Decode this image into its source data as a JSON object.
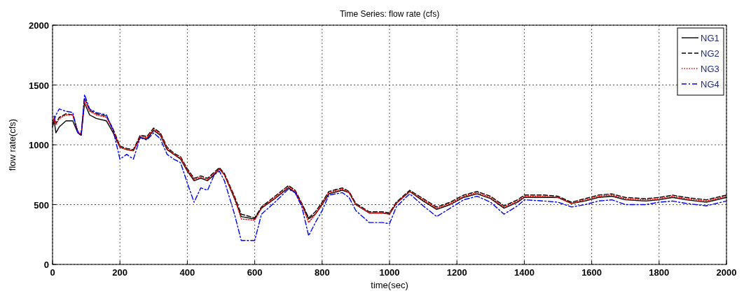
{
  "chart_data": {
    "type": "line",
    "title": "Time Series: flow rate (cfs)",
    "xlabel": "time(sec)",
    "ylabel": "flow rate(cfs)",
    "x": [
      0,
      5,
      10,
      20,
      40,
      60,
      75,
      85,
      95,
      110,
      130,
      160,
      180,
      200,
      220,
      240,
      260,
      280,
      300,
      320,
      340,
      360,
      380,
      400,
      420,
      440,
      460,
      480,
      495,
      510,
      540,
      560,
      600,
      620,
      660,
      700,
      720,
      740,
      760,
      780,
      800,
      820,
      860,
      880,
      900,
      940,
      980,
      1000,
      1020,
      1060,
      1100,
      1140,
      1180,
      1220,
      1260,
      1300,
      1340,
      1380,
      1400,
      1460,
      1500,
      1540,
      1580,
      1620,
      1660,
      1700,
      1760,
      1800,
      1840,
      1880,
      1940,
      2000
    ],
    "series": [
      {
        "name": "NG1",
        "color": "#000000",
        "line_style": "solid",
        "values": [
          1150,
          1200,
          1100,
          1150,
          1200,
          1200,
          1100,
          1080,
          1350,
          1250,
          1220,
          1200,
          1100,
          980,
          960,
          950,
          1060,
          1050,
          1120,
          1080,
          960,
          920,
          880,
          780,
          700,
          720,
          700,
          750,
          800,
          750,
          550,
          400,
          380,
          470,
          550,
          640,
          600,
          500,
          380,
          420,
          500,
          590,
          620,
          600,
          500,
          430,
          430,
          420,
          510,
          610,
          530,
          460,
          500,
          560,
          590,
          550,
          470,
          520,
          560,
          560,
          560,
          510,
          530,
          560,
          570,
          540,
          530,
          540,
          560,
          540,
          520,
          560
        ]
      },
      {
        "name": "NG2",
        "color": "#000000",
        "line_style": "dashed",
        "values": [
          1180,
          1240,
          1180,
          1230,
          1260,
          1250,
          1110,
          1090,
          1390,
          1290,
          1260,
          1240,
          1130,
          990,
          970,
          960,
          1080,
          1070,
          1140,
          1100,
          980,
          930,
          900,
          800,
          720,
          740,
          720,
          770,
          810,
          760,
          570,
          420,
          390,
          480,
          570,
          660,
          620,
          510,
          390,
          440,
          520,
          610,
          640,
          610,
          510,
          440,
          440,
          430,
          520,
          620,
          550,
          480,
          520,
          580,
          610,
          570,
          490,
          540,
          580,
          580,
          570,
          520,
          550,
          580,
          590,
          560,
          550,
          560,
          580,
          560,
          540,
          580
        ]
      },
      {
        "name": "NG3",
        "color": "#ff0000",
        "line_style": "dotted",
        "values": [
          1170,
          1230,
          1170,
          1220,
          1250,
          1250,
          1110,
          1090,
          1380,
          1280,
          1250,
          1230,
          1120,
          980,
          960,
          950,
          1070,
          1060,
          1130,
          1090,
          970,
          920,
          890,
          790,
          710,
          730,
          710,
          760,
          800,
          750,
          560,
          380,
          370,
          470,
          560,
          650,
          610,
          500,
          350,
          420,
          510,
          600,
          630,
          600,
          500,
          430,
          430,
          420,
          510,
          610,
          540,
          470,
          510,
          570,
          600,
          560,
          480,
          530,
          570,
          570,
          560,
          510,
          540,
          570,
          580,
          550,
          540,
          550,
          570,
          550,
          530,
          570
        ]
      },
      {
        "name": "NG4",
        "color": "#0000ff",
        "line_style": "dashdot",
        "values": [
          null,
          1200,
          1250,
          1300,
          1280,
          1270,
          1100,
          1080,
          1420,
          1300,
          1270,
          1250,
          1120,
          880,
          920,
          880,
          1060,
          1040,
          1100,
          1050,
          920,
          880,
          850,
          680,
          520,
          640,
          620,
          750,
          780,
          700,
          420,
          200,
          200,
          420,
          520,
          630,
          600,
          480,
          240,
          350,
          450,
          580,
          600,
          560,
          450,
          350,
          350,
          340,
          480,
          590,
          490,
          400,
          470,
          540,
          570,
          520,
          420,
          490,
          540,
          530,
          520,
          480,
          500,
          530,
          540,
          500,
          500,
          520,
          530,
          510,
          490,
          530
        ]
      }
    ],
    "xlim": [
      0,
      2000
    ],
    "xticks": [
      0,
      200,
      400,
      600,
      800,
      1000,
      1200,
      1400,
      1600,
      1800,
      2000
    ],
    "ylim": [
      0,
      2000
    ],
    "yticks": [
      0,
      500,
      1000,
      1500,
      2000
    ],
    "grid": true,
    "legend": "top right"
  }
}
